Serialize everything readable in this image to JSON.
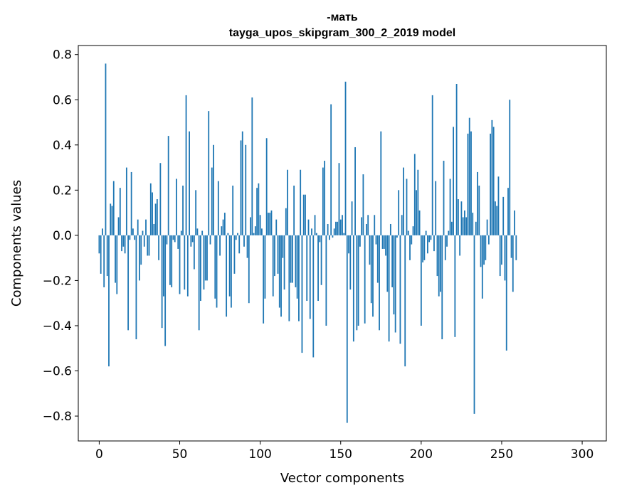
{
  "chart_data": {
    "type": "bar",
    "title_line1": "-мать",
    "title_line2": "tayga_upos_skipgram_300_2_2019 model",
    "xlabel": "Vector components",
    "ylabel": "Components values",
    "xlim": [
      -13,
      315
    ],
    "ylim": [
      -0.91,
      0.84
    ],
    "xticks": [
      0,
      50,
      100,
      150,
      200,
      250,
      300
    ],
    "xtick_labels": [
      "0",
      "50",
      "100",
      "150",
      "200",
      "250",
      "300"
    ],
    "yticks": [
      -0.8,
      -0.6,
      -0.4,
      -0.2,
      0.0,
      0.2,
      0.4,
      0.6,
      0.8
    ],
    "ytick_labels": [
      "−0.8",
      "−0.6",
      "−0.4",
      "−0.2",
      "0.0",
      "0.2",
      "0.4",
      "0.6",
      "0.8"
    ],
    "bar_color": "#1f77b4",
    "values": [
      -0.08,
      -0.17,
      0.03,
      -0.23,
      0.76,
      -0.18,
      -0.58,
      0.14,
      0.13,
      0.24,
      -0.21,
      -0.26,
      0.08,
      0.21,
      -0.07,
      -0.05,
      -0.08,
      0.3,
      -0.42,
      -0.02,
      0.28,
      0.03,
      -0.02,
      -0.46,
      0.07,
      -0.2,
      -0.13,
      0.02,
      -0.05,
      0.07,
      -0.09,
      -0.09,
      0.23,
      0.19,
      0.05,
      0.14,
      0.16,
      -0.11,
      0.32,
      -0.41,
      -0.27,
      -0.49,
      -0.04,
      0.44,
      -0.22,
      -0.23,
      -0.02,
      -0.03,
      0.25,
      -0.06,
      -0.26,
      0.02,
      0.22,
      -0.24,
      0.62,
      -0.27,
      0.46,
      -0.05,
      -0.03,
      -0.15,
      0.2,
      0.03,
      -0.42,
      -0.29,
      0.02,
      -0.24,
      -0.2,
      -0.2,
      0.55,
      -0.04,
      0.3,
      0.4,
      -0.28,
      -0.32,
      0.24,
      -0.09,
      0.04,
      0.07,
      0.1,
      -0.36,
      0.01,
      -0.27,
      -0.32,
      0.22,
      -0.17,
      -0.02,
      0.01,
      -0.08,
      0.42,
      0.46,
      -0.05,
      0.4,
      -0.1,
      -0.3,
      0.08,
      0.61,
      0.01,
      0.04,
      0.21,
      0.23,
      0.09,
      0.03,
      -0.39,
      -0.28,
      0.43,
      0.1,
      0.1,
      0.11,
      -0.27,
      -0.18,
      0.07,
      -0.17,
      -0.32,
      -0.36,
      -0.1,
      -0.24,
      0.12,
      0.29,
      -0.38,
      -0.21,
      -0.21,
      0.22,
      -0.23,
      -0.28,
      -0.38,
      0.29,
      -0.52,
      0.18,
      0.18,
      -0.29,
      0.07,
      -0.37,
      0.03,
      -0.54,
      0.09,
      0.01,
      -0.29,
      -0.03,
      -0.22,
      0.3,
      0.33,
      -0.4,
      0.05,
      -0.02,
      0.58,
      -0.01,
      0.03,
      0.06,
      0.06,
      0.32,
      0.07,
      0.09,
      0.01,
      0.68,
      -0.83,
      -0.08,
      -0.24,
      0.15,
      -0.47,
      0.39,
      -0.42,
      -0.4,
      -0.05,
      0.08,
      0.27,
      -0.39,
      0.05,
      0.09,
      -0.13,
      -0.3,
      -0.36,
      0.09,
      -0.04,
      -0.21,
      -0.42,
      0.46,
      -0.06,
      -0.06,
      -0.09,
      -0.25,
      -0.47,
      0.05,
      -0.23,
      -0.35,
      -0.43,
      -0.01,
      0.2,
      -0.48,
      0.09,
      0.3,
      -0.58,
      0.25,
      0.02,
      -0.11,
      -0.04,
      0.04,
      0.36,
      0.2,
      0.29,
      0.11,
      -0.4,
      -0.12,
      -0.11,
      0.02,
      -0.08,
      -0.03,
      -0.02,
      0.62,
      -0.07,
      0.24,
      -0.18,
      -0.27,
      -0.25,
      -0.46,
      0.33,
      -0.11,
      -0.05,
      0.02,
      0.25,
      0.06,
      0.48,
      -0.45,
      0.67,
      0.16,
      -0.09,
      0.15,
      0.08,
      0.11,
      0.08,
      0.45,
      0.52,
      0.46,
      0.1,
      -0.79,
      0.06,
      0.28,
      0.22,
      -0.14,
      -0.28,
      -0.13,
      -0.11,
      0.07,
      -0.04,
      0.45,
      0.51,
      0.48,
      0.15,
      0.13,
      0.26,
      -0.18,
      -0.13,
      0.17,
      -0.2,
      -0.51,
      0.21,
      0.6,
      -0.1,
      -0.25,
      0.11,
      -0.11
    ]
  }
}
